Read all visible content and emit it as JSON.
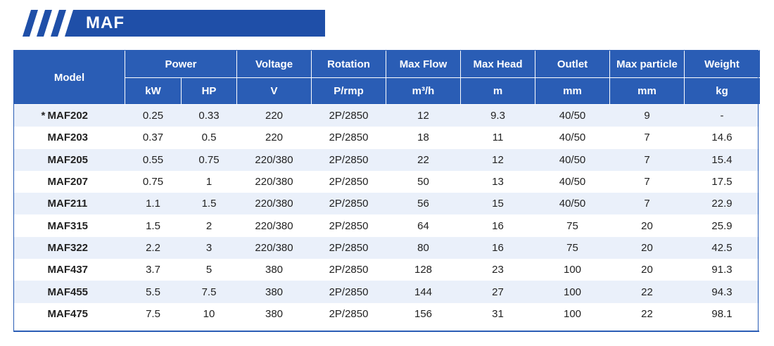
{
  "title": "MAF",
  "header": {
    "model": "Model",
    "power": "Power",
    "voltage": "Voltage",
    "rotation": "Rotation",
    "max_flow": "Max Flow",
    "max_head": "Max Head",
    "outlet": "Outlet",
    "max_particle": "Max particle",
    "weight": "Weight",
    "units": {
      "kw": "kW",
      "hp": "HP",
      "voltage": "V",
      "rotation": "P/rmp",
      "max_flow": "m³/h",
      "max_head": "m",
      "outlet": "mm",
      "max_particle": "mm",
      "weight": "kg"
    }
  },
  "rows": [
    {
      "marker": "*",
      "model": "MAF202",
      "kw": "0.25",
      "hp": "0.33",
      "voltage": "220",
      "rotation": "2P/2850",
      "flow": "12",
      "head": "9.3",
      "outlet": "40/50",
      "particle": "9",
      "weight": "-"
    },
    {
      "marker": "",
      "model": "MAF203",
      "kw": "0.37",
      "hp": "0.5",
      "voltage": "220",
      "rotation": "2P/2850",
      "flow": "18",
      "head": "11",
      "outlet": "40/50",
      "particle": "7",
      "weight": "14.6"
    },
    {
      "marker": "",
      "model": "MAF205",
      "kw": "0.55",
      "hp": "0.75",
      "voltage": "220/380",
      "rotation": "2P/2850",
      "flow": "22",
      "head": "12",
      "outlet": "40/50",
      "particle": "7",
      "weight": "15.4"
    },
    {
      "marker": "",
      "model": "MAF207",
      "kw": "0.75",
      "hp": "1",
      "voltage": "220/380",
      "rotation": "2P/2850",
      "flow": "50",
      "head": "13",
      "outlet": "40/50",
      "particle": "7",
      "weight": "17.5"
    },
    {
      "marker": "",
      "model": "MAF211",
      "kw": "1.1",
      "hp": "1.5",
      "voltage": "220/380",
      "rotation": "2P/2850",
      "flow": "56",
      "head": "15",
      "outlet": "40/50",
      "particle": "7",
      "weight": "22.9"
    },
    {
      "marker": "",
      "model": "MAF315",
      "kw": "1.5",
      "hp": "2",
      "voltage": "220/380",
      "rotation": "2P/2850",
      "flow": "64",
      "head": "16",
      "outlet": "75",
      "particle": "20",
      "weight": "25.9"
    },
    {
      "marker": "",
      "model": "MAF322",
      "kw": "2.2",
      "hp": "3",
      "voltage": "220/380",
      "rotation": "2P/2850",
      "flow": "80",
      "head": "16",
      "outlet": "75",
      "particle": "20",
      "weight": "42.5"
    },
    {
      "marker": "",
      "model": "MAF437",
      "kw": "3.7",
      "hp": "5",
      "voltage": "380",
      "rotation": "2P/2850",
      "flow": "128",
      "head": "23",
      "outlet": "100",
      "particle": "20",
      "weight": "91.3"
    },
    {
      "marker": "",
      "model": "MAF455",
      "kw": "5.5",
      "hp": "7.5",
      "voltage": "380",
      "rotation": "2P/2850",
      "flow": "144",
      "head": "27",
      "outlet": "100",
      "particle": "22",
      "weight": "94.3"
    },
    {
      "marker": "",
      "model": "MAF475",
      "kw": "7.5",
      "hp": "10",
      "voltage": "380",
      "rotation": "2P/2850",
      "flow": "156",
      "head": "31",
      "outlet": "100",
      "particle": "22",
      "weight": "98.1"
    }
  ],
  "colors": {
    "header_blue": "#2a5db5",
    "title_blue": "#1f4fa8",
    "stripe_row": "#eaf0fa"
  }
}
